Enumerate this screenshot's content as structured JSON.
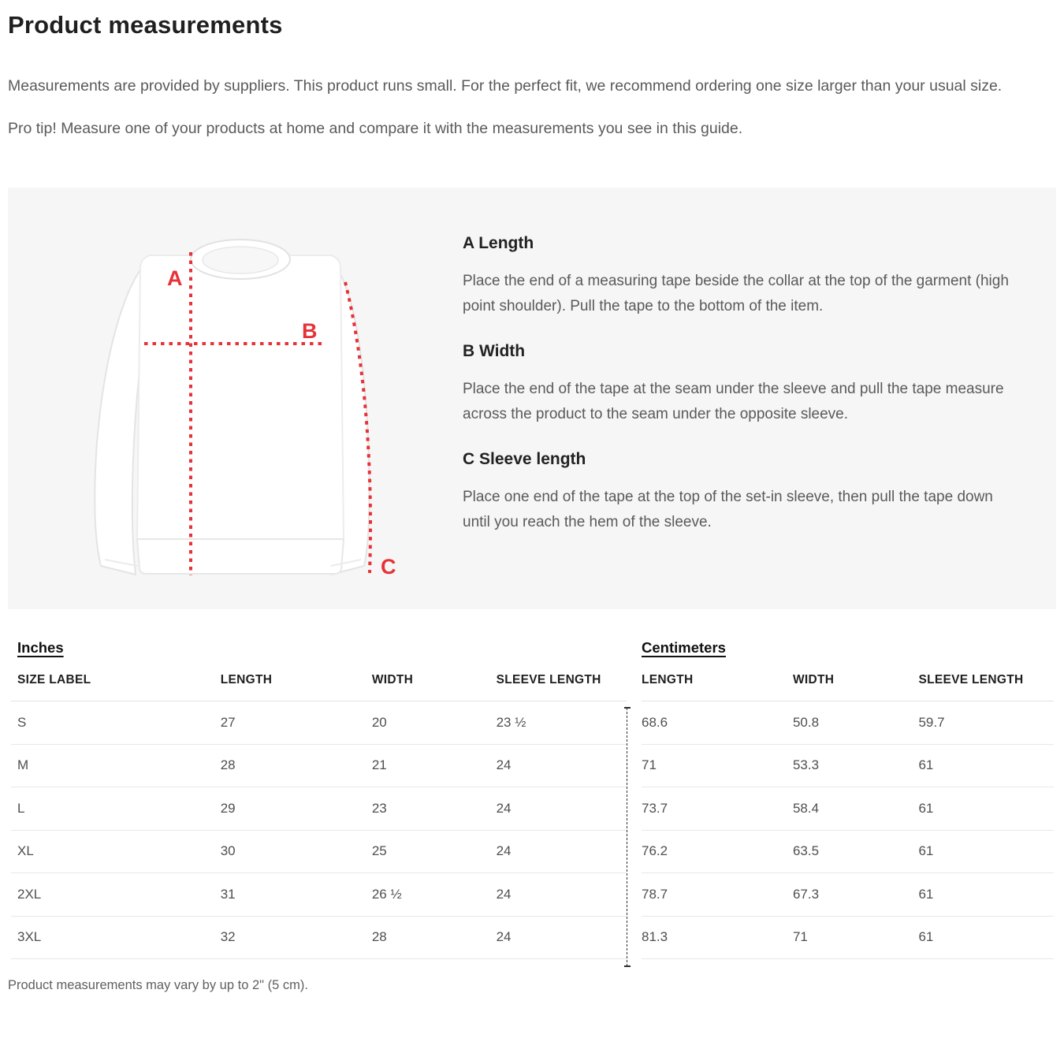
{
  "page": {
    "title": "Product measurements",
    "intro": "Measurements are provided by suppliers. This product runs small. For the perfect fit, we recommend ordering one size larger than your usual size.",
    "pro_tip": "Pro tip! Measure one of your products at home and compare it with the measurements you see in this guide.",
    "footnote": "Product measurements may vary by up to 2\" (5 cm)."
  },
  "diagram": {
    "accent_color": "#e63238",
    "labels": {
      "a": "A",
      "b": "B",
      "c": "C"
    }
  },
  "instructions": [
    {
      "heading": "A Length",
      "body": "Place the end of a measuring tape beside the collar at the top of the garment (high point shoulder). Pull the tape to the bottom of the item."
    },
    {
      "heading": "B Width",
      "body": "Place the end of the tape at the seam under the sleeve and pull the tape measure across the product to the seam under the opposite sleeve."
    },
    {
      "heading": "C Sleeve length",
      "body": "Place one end of the tape at the top of the set-in sleeve, then pull the tape down until you reach the hem of the sleeve."
    }
  ],
  "tables": {
    "inches": {
      "heading": "Inches",
      "columns": [
        "SIZE LABEL",
        "LENGTH",
        "WIDTH",
        "SLEEVE LENGTH"
      ],
      "rows": [
        [
          "S",
          "27",
          "20",
          "23 ½"
        ],
        [
          "M",
          "28",
          "21",
          "24"
        ],
        [
          "L",
          "29",
          "23",
          "24"
        ],
        [
          "XL",
          "30",
          "25",
          "24"
        ],
        [
          "2XL",
          "31",
          "26 ½",
          "24"
        ],
        [
          "3XL",
          "32",
          "28",
          "24"
        ]
      ]
    },
    "centimeters": {
      "heading": "Centimeters",
      "columns": [
        "LENGTH",
        "WIDTH",
        "SLEEVE LENGTH"
      ],
      "rows": [
        [
          "68.6",
          "50.8",
          "59.7"
        ],
        [
          "71",
          "53.3",
          "61"
        ],
        [
          "73.7",
          "58.4",
          "61"
        ],
        [
          "76.2",
          "63.5",
          "61"
        ],
        [
          "78.7",
          "67.3",
          "61"
        ],
        [
          "81.3",
          "71",
          "61"
        ]
      ]
    }
  }
}
